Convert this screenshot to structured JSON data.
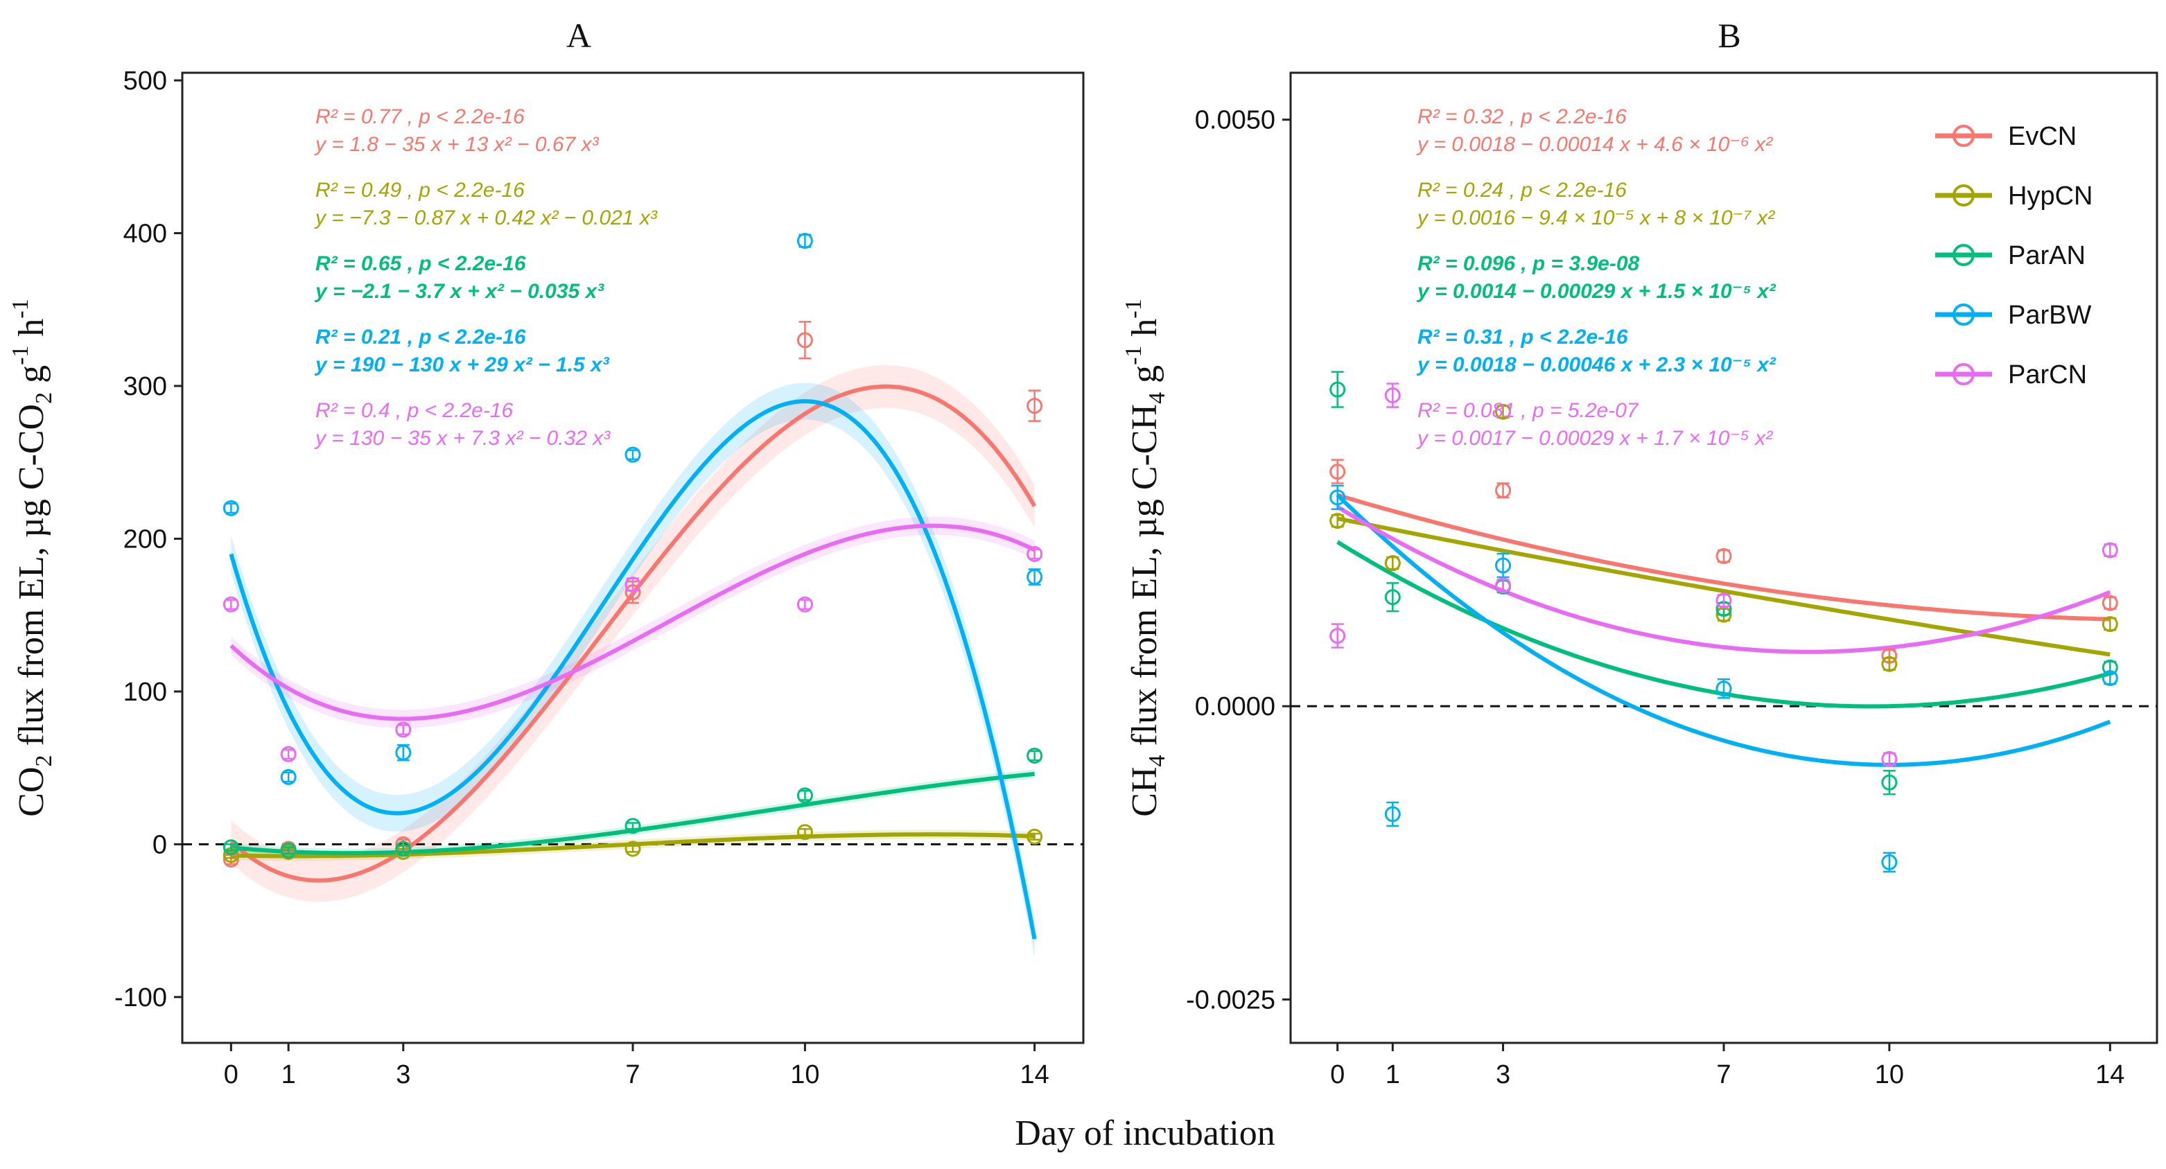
{
  "figure": {
    "xlabel": "Day of incubation"
  },
  "colors": {
    "EvCN": "#f8766d",
    "HypCN": "#a3a500",
    "ParAN": "#00bf7d",
    "ParBW": "#00b0f6",
    "ParCN": "#e76bf3"
  },
  "legend": {
    "items": [
      "EvCN",
      "HypCN",
      "ParAN",
      "ParBW",
      "ParCN"
    ],
    "placement": "top-right of panel B"
  },
  "chart_data": [
    {
      "type": "scatter",
      "panel": "A",
      "title": "A",
      "ylabel": "CO₂ flux from EL, µg C-CO₂ g⁻¹ h⁻¹",
      "xlabel": "Day of incubation",
      "xticks": [
        0,
        1,
        3,
        7,
        10,
        14
      ],
      "xlim": [
        -0.85,
        14.85
      ],
      "yticks": [
        -100,
        0,
        100,
        200,
        300,
        400,
        500
      ],
      "ylim": [
        -130,
        505
      ],
      "grid": false,
      "hline": 0,
      "series": [
        {
          "name": "EvCN",
          "points": [
            [
              0,
              -10,
              3
            ],
            [
              1,
              -3,
              2
            ],
            [
              3,
              0,
              3
            ],
            [
              7,
              165,
              7
            ],
            [
              10,
              330,
              12
            ],
            [
              14,
              287,
              10
            ]
          ],
          "fit": [
            1.8,
            -35,
            13,
            -0.67
          ],
          "ribbon": 14,
          "annotation": [
            "R² = 0.77 , p < 2.2e-16",
            "y = 1.8 − 35 x + 13 x² − 0.67 x³"
          ]
        },
        {
          "name": "HypCN",
          "points": [
            [
              0,
              -7,
              2
            ],
            [
              1,
              -5,
              2
            ],
            [
              3,
              -5,
              2
            ],
            [
              7,
              -3,
              2
            ],
            [
              10,
              8,
              2
            ],
            [
              14,
              5,
              2
            ]
          ],
          "fit": [
            -7.3,
            -0.87,
            0.42,
            -0.021
          ],
          "ribbon": 3,
          "annotation": [
            "R² = 0.49 , p < 2.2e-16",
            "y = −7.3 − 0.87 x + 0.42 x² − 0.021 x³"
          ]
        },
        {
          "name": "ParAN",
          "points": [
            [
              0,
              -2,
              2
            ],
            [
              1,
              -4,
              2
            ],
            [
              3,
              -3,
              2
            ],
            [
              7,
              12,
              2
            ],
            [
              10,
              32,
              3
            ],
            [
              14,
              58,
              3
            ]
          ],
          "fit": [
            -2.1,
            -3.7,
            1,
            -0.035
          ],
          "ribbon": 3,
          "annotation": [
            "R² = 0.65 , p < 2.2e-16",
            "y = −2.1 − 3.7 x + x² − 0.035 x³"
          ]
        },
        {
          "name": "ParBW",
          "points": [
            [
              0,
              220,
              3
            ],
            [
              1,
              44,
              3
            ],
            [
              3,
              60,
              5
            ],
            [
              7,
              255,
              3
            ],
            [
              10,
              395,
              4
            ],
            [
              14,
              175,
              5
            ]
          ],
          "fit": [
            190,
            -130,
            29,
            -1.5
          ],
          "ribbon": 12,
          "annotation": [
            "R² = 0.21 , p < 2.2e-16",
            "y = 190 − 130 x + 29 x² − 1.5 x³"
          ]
        },
        {
          "name": "ParCN",
          "points": [
            [
              0,
              157,
              3
            ],
            [
              1,
              59,
              3
            ],
            [
              3,
              75,
              3
            ],
            [
              7,
              170,
              4
            ],
            [
              10,
              157,
              3
            ],
            [
              14,
              190,
              3
            ]
          ],
          "fit": [
            130,
            -35,
            7.3,
            -0.32
          ],
          "ribbon": 6,
          "annotation": [
            "R² = 0.4 , p < 2.2e-16",
            "y = 130 − 35 x + 7.3 x² − 0.32 x³"
          ]
        }
      ]
    },
    {
      "type": "scatter",
      "panel": "B",
      "title": "B",
      "ylabel": "CH₄ flux from EL, µg C-CH₄ g⁻¹ h⁻¹",
      "xlabel": "Day of incubation",
      "xticks": [
        0,
        1,
        3,
        7,
        10,
        14
      ],
      "yticks": [
        -0.0025,
        0,
        0.005
      ],
      "yticklabels": [
        "-0.0025",
        "0.0000",
        "0.0050"
      ],
      "ylim": [
        -0.00287,
        0.0054
      ],
      "grid": false,
      "hline": 0,
      "series": [
        {
          "name": "EvCN",
          "points": [
            [
              0,
              0.002,
              0.0001
            ],
            [
              1,
              0.00122,
              5e-05
            ],
            [
              3,
              0.00184,
              6e-05
            ],
            [
              7,
              0.00128,
              5e-05
            ],
            [
              10,
              0.00043,
              5e-05
            ],
            [
              14,
              0.00088,
              5e-05
            ]
          ],
          "fit": [
            0.0018,
            -0.00014,
            4.6e-06
          ],
          "annotation": [
            "R² = 0.32 , p < 2.2e-16",
            "y = 0.0018 − 0.00014 x + 4.6 × 10⁻⁶ x²"
          ]
        },
        {
          "name": "HypCN",
          "points": [
            [
              0,
              0.00158,
              5e-05
            ],
            [
              1,
              0.00122,
              5e-05
            ],
            [
              3,
              0.00251,
              5e-05
            ],
            [
              7,
              0.00078,
              5e-05
            ],
            [
              10,
              0.00036,
              5e-05
            ],
            [
              14,
              0.0007,
              5e-05
            ]
          ],
          "fit": [
            0.0016,
            -9.4e-05,
            8e-07
          ],
          "annotation": [
            "R² = 0.24 , p < 2.2e-16",
            "y = 0.0016 − 9.4 × 10⁻⁵ x + 8 × 10⁻⁷ x²"
          ]
        },
        {
          "name": "ParAN",
          "points": [
            [
              0,
              0.0027,
              0.00015
            ],
            [
              1,
              0.00093,
              0.00012
            ],
            [
              3,
              0.00102,
              5e-05
            ],
            [
              7,
              0.00083,
              5e-05
            ],
            [
              10,
              -0.00065,
              0.0001
            ],
            [
              14,
              0.00033,
              5e-05
            ]
          ],
          "fit": [
            0.0014,
            -0.00029,
            1.5e-05
          ],
          "annotation": [
            "R² = 0.096 , p = 3.9e-08",
            "y = 0.0014 − 0.00029 x + 1.5 × 10⁻⁵ x²"
          ]
        },
        {
          "name": "ParBW",
          "points": [
            [
              0,
              0.00178,
              0.0001
            ],
            [
              1,
              -0.00092,
              0.0001
            ],
            [
              3,
              0.0012,
              0.0001
            ],
            [
              7,
              0.00015,
              8e-05
            ],
            [
              10,
              -0.00133,
              8e-05
            ],
            [
              14,
              0.00024,
              5e-05
            ]
          ],
          "fit": [
            0.0018,
            -0.00046,
            2.3e-05
          ],
          "annotation": [
            "R² = 0.31 , p < 2.2e-16",
            "y = 0.0018 − 0.00046 x + 2.3 × 10⁻⁵ x²"
          ]
        },
        {
          "name": "ParCN",
          "points": [
            [
              0,
              0.0006,
              0.0001
            ],
            [
              1,
              0.00265,
              0.0001
            ],
            [
              3,
              0.00103,
              5e-05
            ],
            [
              7,
              0.0009,
              5e-05
            ],
            [
              10,
              -0.00045,
              5e-05
            ],
            [
              14,
              0.00133,
              5e-05
            ]
          ],
          "fit": [
            0.0017,
            -0.00029,
            1.7e-05
          ],
          "annotation": [
            "R² = 0.081 , p = 5.2e-07",
            "y = 0.0017 − 0.00029 x + 1.7 × 10⁻⁵ x²"
          ]
        }
      ]
    }
  ]
}
